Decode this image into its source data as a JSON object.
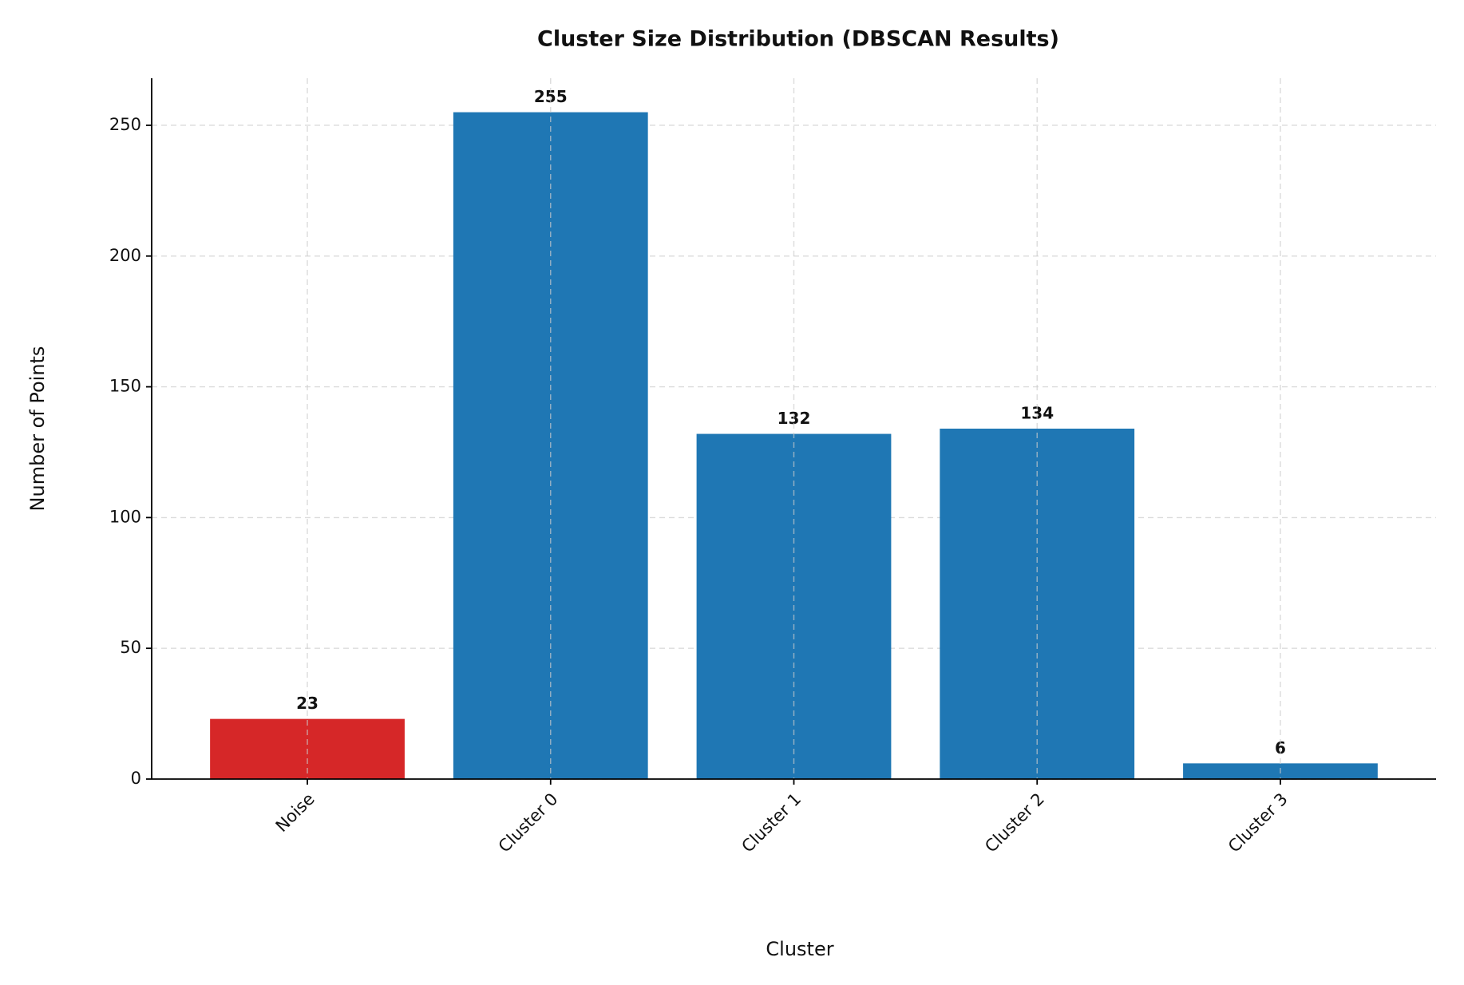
{
  "chart_data": {
    "type": "bar",
    "title": "Cluster Size Distribution (DBSCAN Results)",
    "x_label": "Cluster",
    "y_label": "Number of Points",
    "categories": [
      "Noise",
      "Cluster 0",
      "Cluster 1",
      "Cluster 2",
      "Cluster 3"
    ],
    "values": [
      23,
      255,
      132,
      134,
      6
    ],
    "colors": [
      "#d62728",
      "#1f77b4",
      "#1f77b4",
      "#1f77b4",
      "#1f77b4"
    ],
    "ylim": [
      0,
      268
    ],
    "yticks": [
      0,
      50,
      100,
      150,
      200,
      250
    ],
    "grid": true
  }
}
